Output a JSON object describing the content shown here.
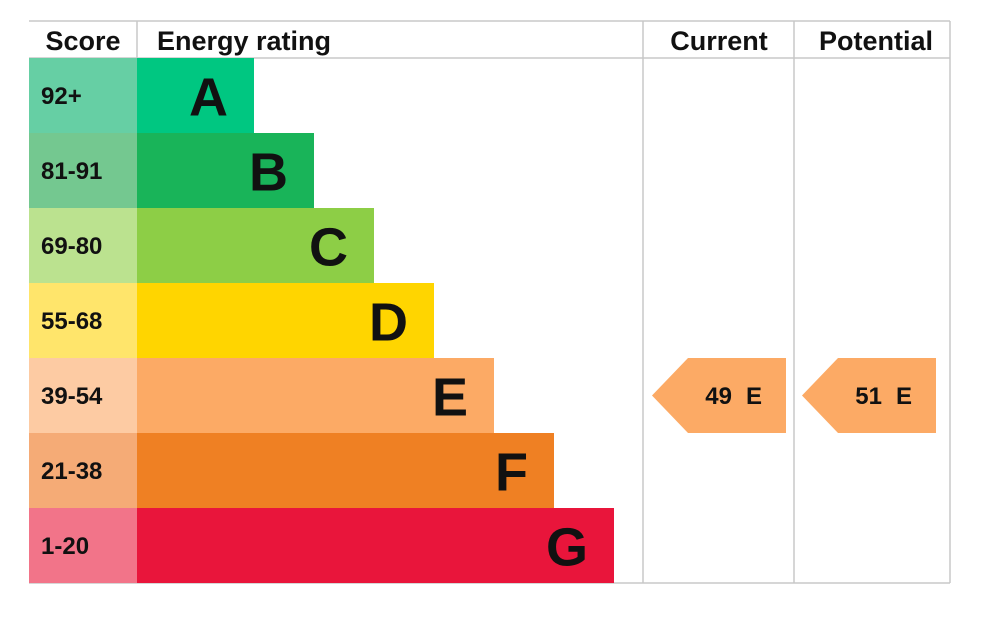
{
  "chart_data": {
    "type": "epc",
    "headers": [
      "Score",
      "Energy rating",
      "Current",
      "Potential"
    ],
    "bands": [
      {
        "score": "92+",
        "letter": "A",
        "color": "#00c781",
        "score_color": "#66cfa4"
      },
      {
        "score": "81-91",
        "letter": "B",
        "color": "#19b459",
        "score_color": "#74c890"
      },
      {
        "score": "69-80",
        "letter": "C",
        "color": "#8dce46",
        "score_color": "#bbe28f"
      },
      {
        "score": "55-68",
        "letter": "D",
        "color": "#ffd500",
        "score_color": "#ffe56b"
      },
      {
        "score": "39-54",
        "letter": "E",
        "color": "#fcaa65",
        "score_color": "#fdcba3"
      },
      {
        "score": "21-38",
        "letter": "F",
        "color": "#ef8023",
        "score_color": "#f5ab76"
      },
      {
        "score": "1-20",
        "letter": "G",
        "color": "#e9153b",
        "score_color": "#f27489"
      }
    ],
    "current": {
      "value": 49,
      "rating": "E",
      "color": "#fcaa65"
    },
    "potential": {
      "value": 51,
      "rating": "E",
      "color": "#fcaa65"
    }
  }
}
